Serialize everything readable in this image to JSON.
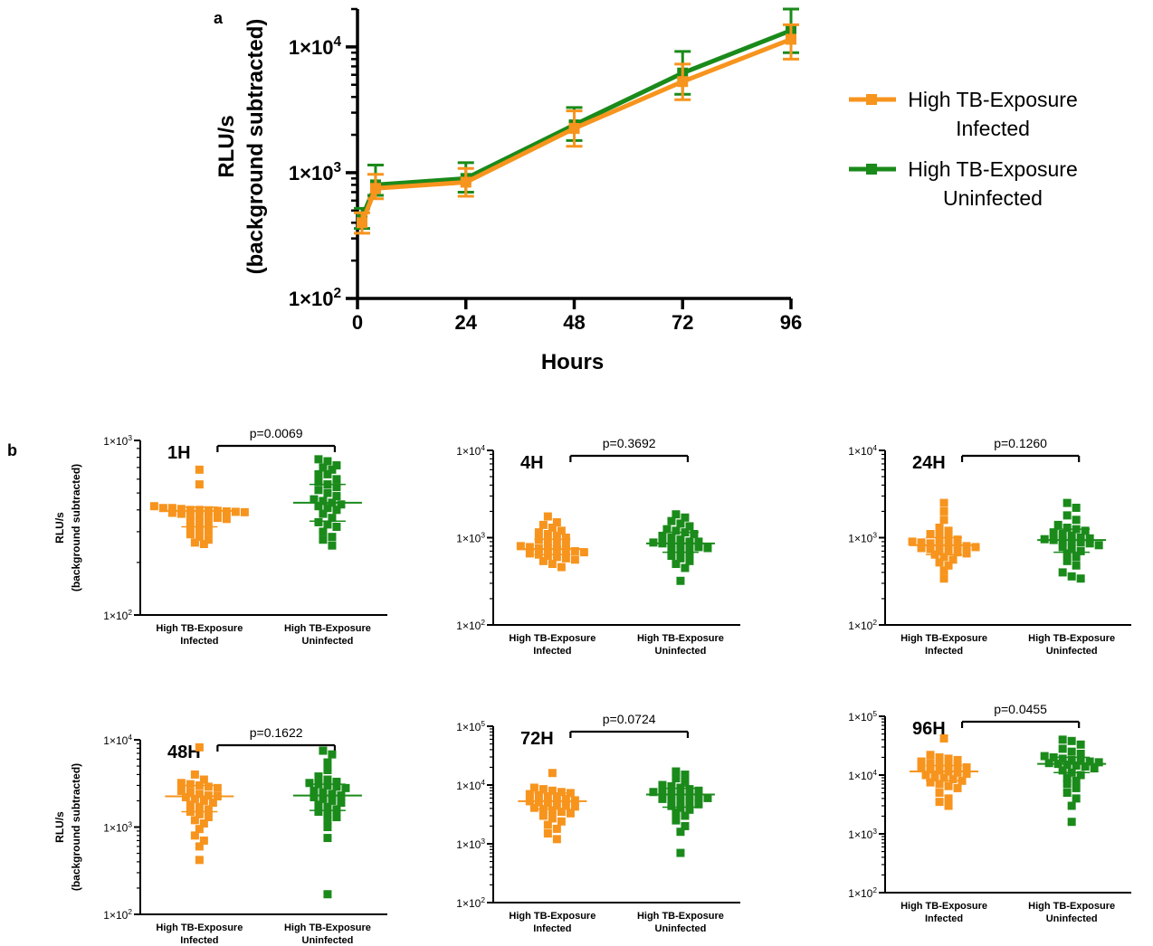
{
  "figure": {
    "panel_a_label": "a",
    "panel_b_label": "b"
  },
  "colors": {
    "infected": "#f7941d",
    "uninfected": "#1a8a1a"
  },
  "chart_data": [
    {
      "id": "a",
      "type": "line",
      "xlabel": "Hours",
      "ylabel": "RLU/s",
      "ylabel2": "(background subtracted)",
      "yscale": "log",
      "ylim": [
        100,
        20000
      ],
      "xlim": [
        0,
        96
      ],
      "xticks": [
        0,
        24,
        48,
        72,
        96
      ],
      "xtick_labels": [
        "0",
        "24",
        "48",
        "72",
        "96"
      ],
      "yticks": [
        100,
        1000,
        10000
      ],
      "ytick_labels": [
        {
          "base": "1×10",
          "exp": "2"
        },
        {
          "base": "1×10",
          "exp": "3"
        },
        {
          "base": "1×10",
          "exp": "4"
        }
      ],
      "legend": "right",
      "series": [
        {
          "name": "High TB-Exposure Infected",
          "color": "infected",
          "x": [
            1,
            4,
            24,
            48,
            72,
            96
          ],
          "y": [
            400,
            750,
            840,
            2250,
            5300,
            11500
          ],
          "err_low": [
            330,
            620,
            650,
            1620,
            3800,
            8000
          ],
          "err_high": [
            480,
            970,
            1080,
            3100,
            7300,
            15000
          ]
        },
        {
          "name": "High TB-Exposure Uninfected",
          "color": "uninfected",
          "x": [
            1,
            4,
            24,
            48,
            72,
            96
          ],
          "y": [
            440,
            800,
            900,
            2400,
            6200,
            13500
          ],
          "err_low": [
            360,
            660,
            700,
            1800,
            4200,
            9000
          ],
          "err_high": [
            520,
            1150,
            1200,
            3300,
            9200,
            20000
          ]
        }
      ],
      "legend_entries": [
        {
          "line1": "High TB-Exposure",
          "line2": "Infected",
          "color": "infected"
        },
        {
          "line1": "High TB-Exposure",
          "line2": "Uninfected",
          "color": "uninfected"
        }
      ]
    },
    {
      "id": "1H",
      "type": "scatter",
      "tag": "1H",
      "pvalue": "p=0.0069",
      "yscale": "log",
      "ylim": [
        100,
        1000
      ],
      "yticks": [
        100,
        1000
      ],
      "ytick_labels": [
        {
          "base": "1×10",
          "exp": "2"
        },
        {
          "base": "1×10",
          "exp": "3"
        }
      ],
      "ylabel": "RLU/s",
      "ylabel2": "(background subtracted)",
      "categories": [
        {
          "line1": "High TB-Exposure",
          "line2": "Infected"
        },
        {
          "line1": "High TB-Exposure",
          "line2": "Uninfected"
        }
      ],
      "groups": [
        {
          "color": "infected",
          "median": 395,
          "q1": 320,
          "q3": 415,
          "values": [
            680,
            560,
            420,
            410,
            405,
            400,
            398,
            395,
            392,
            390,
            388,
            385,
            380,
            375,
            370,
            365,
            360,
            355,
            350,
            340,
            330,
            320,
            310,
            300,
            290,
            280,
            270,
            260,
            255,
            410,
            400
          ]
        },
        {
          "color": "uninfected",
          "median": 440,
          "q1": 345,
          "q3": 560,
          "values": [
            780,
            760,
            720,
            700,
            680,
            640,
            600,
            580,
            560,
            540,
            520,
            500,
            480,
            460,
            450,
            440,
            430,
            420,
            410,
            400,
            380,
            360,
            340,
            330,
            320,
            300,
            280,
            270,
            250,
            640
          ]
        }
      ]
    },
    {
      "id": "4H",
      "type": "scatter",
      "tag": "4H",
      "pvalue": "p=0.3692",
      "yscale": "log",
      "ylim": [
        100,
        10000
      ],
      "yticks": [
        100,
        1000,
        10000
      ],
      "ytick_labels": [
        {
          "base": "1×10",
          "exp": "2"
        },
        {
          "base": "1×10",
          "exp": "3"
        },
        {
          "base": "1×10",
          "exp": "4"
        }
      ],
      "categories": [
        {
          "line1": "High TB-Exposure",
          "line2": "Infected"
        },
        {
          "line1": "High TB-Exposure",
          "line2": "Uninfected"
        }
      ],
      "groups": [
        {
          "color": "infected",
          "median": 740,
          "q1": 640,
          "q3": 960,
          "values": [
            1750,
            1500,
            1400,
            1300,
            1200,
            1150,
            1100,
            1050,
            1000,
            950,
            900,
            860,
            820,
            800,
            780,
            760,
            740,
            720,
            700,
            680,
            660,
            640,
            620,
            600,
            580,
            560,
            540,
            500,
            460,
            750
          ]
        },
        {
          "color": "uninfected",
          "median": 860,
          "q1": 680,
          "q3": 1150,
          "values": [
            1850,
            1700,
            1550,
            1450,
            1350,
            1250,
            1200,
            1150,
            1100,
            1050,
            1000,
            950,
            900,
            880,
            860,
            840,
            820,
            800,
            780,
            760,
            740,
            700,
            660,
            620,
            580,
            540,
            500,
            450,
            320,
            900
          ]
        }
      ]
    },
    {
      "id": "24H",
      "type": "scatter",
      "tag": "24H",
      "pvalue": "p=0.1260",
      "yscale": "log",
      "ylim": [
        100,
        10000
      ],
      "yticks": [
        100,
        1000,
        10000
      ],
      "ytick_labels": [
        {
          "base": "1×10",
          "exp": "2"
        },
        {
          "base": "1×10",
          "exp": "3"
        },
        {
          "base": "1×10",
          "exp": "4"
        }
      ],
      "categories": [
        {
          "line1": "High TB-Exposure",
          "line2": "Infected"
        },
        {
          "line1": "High TB-Exposure",
          "line2": "Uninfected"
        }
      ],
      "groups": [
        {
          "color": "infected",
          "median": 820,
          "q1": 640,
          "q3": 1000,
          "values": [
            2500,
            2000,
            1600,
            1300,
            1200,
            1100,
            1050,
            1000,
            950,
            900,
            880,
            860,
            840,
            820,
            800,
            780,
            760,
            740,
            720,
            700,
            680,
            660,
            640,
            600,
            560,
            520,
            480,
            420,
            340,
            850
          ]
        },
        {
          "color": "uninfected",
          "median": 940,
          "q1": 680,
          "q3": 1250,
          "values": [
            2500,
            2200,
            1800,
            1600,
            1400,
            1300,
            1250,
            1200,
            1150,
            1100,
            1050,
            1000,
            980,
            960,
            940,
            920,
            900,
            880,
            860,
            820,
            780,
            740,
            700,
            660,
            600,
            540,
            480,
            400,
            360,
            340
          ]
        }
      ]
    },
    {
      "id": "48H",
      "type": "scatter",
      "tag": "48H",
      "pvalue": "p=0.1622",
      "yscale": "log",
      "ylim": [
        100,
        10000
      ],
      "yticks": [
        100,
        1000,
        10000
      ],
      "ytick_labels": [
        {
          "base": "1×10",
          "exp": "2"
        },
        {
          "base": "1×10",
          "exp": "3"
        },
        {
          "base": "1×10",
          "exp": "4"
        }
      ],
      "ylabel": "RLU/s",
      "ylabel2": "(background subtracted)",
      "categories": [
        {
          "line1": "High TB-Exposure",
          "line2": "Infected"
        },
        {
          "line1": "High TB-Exposure",
          "line2": "Uninfected"
        }
      ],
      "groups": [
        {
          "color": "infected",
          "median": 2250,
          "q1": 1500,
          "q3": 3000,
          "values": [
            8200,
            4000,
            3500,
            3200,
            3100,
            3000,
            2900,
            2800,
            2600,
            2500,
            2400,
            2300,
            2250,
            2200,
            2100,
            2000,
            1900,
            1800,
            1700,
            1600,
            1500,
            1400,
            1300,
            1200,
            1100,
            950,
            800,
            700,
            600,
            420
          ]
        },
        {
          "color": "uninfected",
          "median": 2300,
          "q1": 1550,
          "q3": 3100,
          "values": [
            7500,
            6800,
            5500,
            4500,
            3800,
            3500,
            3300,
            3200,
            3100,
            3000,
            2900,
            2800,
            2600,
            2500,
            2400,
            2300,
            2200,
            2100,
            2000,
            1900,
            1800,
            1700,
            1600,
            1500,
            1400,
            1300,
            1200,
            1000,
            750,
            170
          ]
        }
      ]
    },
    {
      "id": "72H",
      "type": "scatter",
      "tag": "72H",
      "pvalue": "p=0.0724",
      "yscale": "log",
      "ylim": [
        100,
        100000
      ],
      "yticks": [
        100,
        1000,
        10000,
        100000
      ],
      "ytick_labels": [
        {
          "base": "1×10",
          "exp": "2"
        },
        {
          "base": "1×10",
          "exp": "3"
        },
        {
          "base": "1×10",
          "exp": "4"
        },
        {
          "base": "1×10",
          "exp": "5"
        }
      ],
      "categories": [
        {
          "line1": "High TB-Exposure",
          "line2": "Infected"
        },
        {
          "line1": "High TB-Exposure",
          "line2": "Uninfected"
        }
      ],
      "groups": [
        {
          "color": "infected",
          "median": 5300,
          "q1": 3900,
          "q3": 7300,
          "values": [
            16000,
            9000,
            8500,
            8000,
            7600,
            7300,
            7000,
            6700,
            6400,
            6100,
            5800,
            5500,
            5300,
            5100,
            4900,
            4700,
            4500,
            4300,
            4100,
            3900,
            3700,
            3500,
            3300,
            3000,
            2700,
            2400,
            2100,
            1800,
            1500,
            1200
          ]
        },
        {
          "color": "uninfected",
          "median": 6900,
          "q1": 4200,
          "q3": 8800,
          "values": [
            17000,
            15000,
            13000,
            11000,
            10000,
            9500,
            9000,
            8500,
            8000,
            7600,
            7300,
            7000,
            6800,
            6500,
            6200,
            6000,
            5800,
            5500,
            5200,
            5000,
            4700,
            4400,
            4100,
            3800,
            3400,
            3000,
            2500,
            2000,
            1600,
            700
          ]
        }
      ]
    },
    {
      "id": "96H",
      "type": "scatter",
      "tag": "96H",
      "pvalue": "p=0.0455",
      "yscale": "log",
      "ylim": [
        100,
        100000
      ],
      "yticks": [
        100,
        1000,
        10000,
        100000
      ],
      "ytick_labels": [
        {
          "base": "1×10",
          "exp": "2"
        },
        {
          "base": "1×10",
          "exp": "3"
        },
        {
          "base": "1×10",
          "exp": "4"
        },
        {
          "base": "1×10",
          "exp": "5"
        }
      ],
      "categories": [
        {
          "line1": "High TB-Exposure",
          "line2": "Infected"
        },
        {
          "line1": "High TB-Exposure",
          "line2": "Uninfected"
        }
      ],
      "groups": [
        {
          "color": "infected",
          "median": 11500,
          "q1": 8000,
          "q3": 14500,
          "values": [
            42000,
            22000,
            20000,
            19000,
            18000,
            17000,
            16000,
            15000,
            14500,
            14000,
            13500,
            13000,
            12500,
            12000,
            11500,
            11000,
            10500,
            10000,
            9500,
            9000,
            8500,
            8000,
            7500,
            7000,
            6500,
            6000,
            5000,
            4000,
            3500,
            3000
          ]
        },
        {
          "color": "uninfected",
          "median": 15500,
          "q1": 11000,
          "q3": 20000,
          "values": [
            40000,
            38000,
            33000,
            28000,
            25000,
            23000,
            21000,
            20000,
            19000,
            18000,
            17500,
            17000,
            16500,
            16000,
            15500,
            15000,
            14500,
            14000,
            13000,
            12000,
            11000,
            10000,
            9000,
            8000,
            7000,
            6000,
            5000,
            4000,
            3000,
            1600
          ]
        }
      ]
    }
  ]
}
